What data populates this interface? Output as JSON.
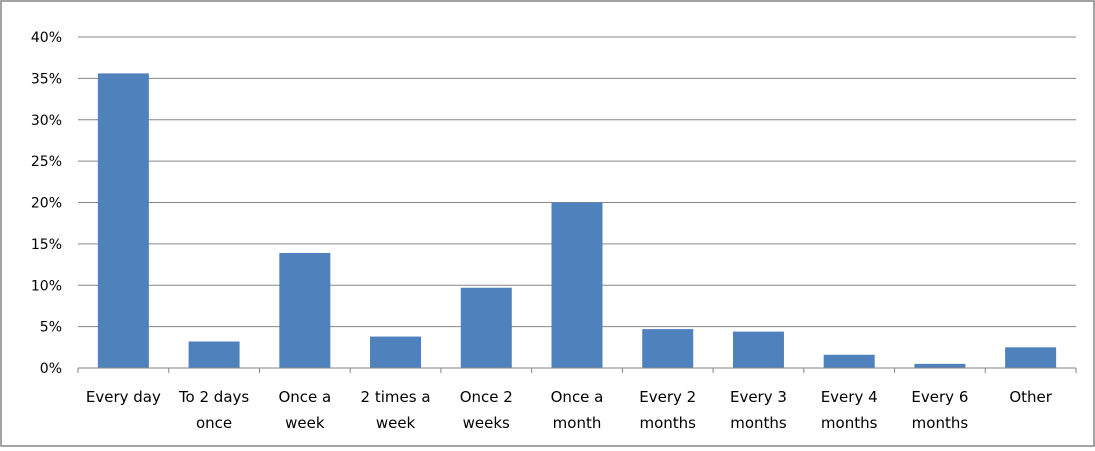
{
  "chart_data": {
    "type": "bar",
    "title": "",
    "xlabel": "",
    "ylabel": "",
    "categories": [
      [
        "Every day"
      ],
      [
        "To 2 days",
        "once"
      ],
      [
        "Once a",
        "week"
      ],
      [
        "2 times a",
        "week"
      ],
      [
        "Once 2",
        "weeks"
      ],
      [
        "Once a",
        "month"
      ],
      [
        "Every 2",
        "months"
      ],
      [
        "Every 3",
        "months"
      ],
      [
        "Every 4",
        "months"
      ],
      [
        "Every 6",
        "months"
      ],
      [
        "Other"
      ]
    ],
    "values": [
      35.6,
      3.2,
      13.9,
      3.8,
      9.7,
      20.0,
      4.7,
      4.4,
      1.6,
      0.5,
      2.5
    ],
    "ylim": [
      0,
      40
    ],
    "yticks": [
      0,
      5,
      10,
      15,
      20,
      25,
      30,
      35,
      40
    ],
    "ytick_suffix": "%",
    "grid": true,
    "legend": "none",
    "colors": {
      "bar": "#4f81bd",
      "grid": "#868686",
      "frame": "#868686"
    }
  }
}
